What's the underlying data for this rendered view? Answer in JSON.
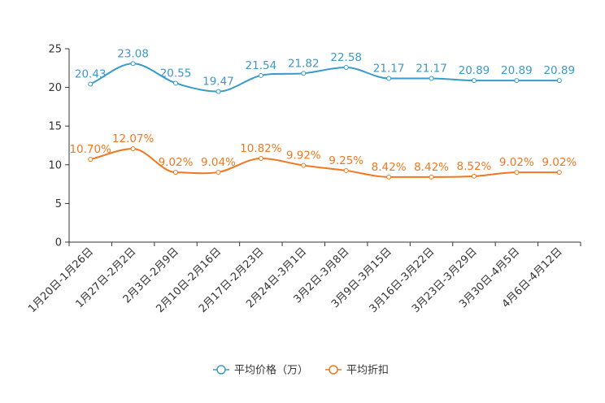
{
  "chart_data": {
    "type": "line",
    "title": "",
    "xlabel": "",
    "ylabel": "",
    "ylim": [
      0,
      25
    ],
    "yticks": [
      0,
      5,
      10,
      15,
      20,
      25
    ],
    "grid": false,
    "legend_position": "bottom-center",
    "categories": [
      "1月20日-1月26日",
      "1月27日-2月2日",
      "2月3日-2月9日",
      "2月10日-2月16日",
      "2月17日-2月23日",
      "2月24日-3月1日",
      "3月2日-3月8日",
      "3月9日-3月15日",
      "3月16日-3月22日",
      "3月23日-3月29日",
      "3月30日-4月5日",
      "4月6日-4月12日"
    ],
    "series": [
      {
        "name": "平均价格（万）",
        "color": "#3a9ac9",
        "values": [
          20.43,
          23.08,
          20.55,
          19.47,
          21.54,
          21.82,
          22.58,
          21.17,
          21.17,
          20.89,
          20.89,
          20.89
        ],
        "labels": [
          "20.43",
          "23.08",
          "20.55",
          "19.47",
          "21.54",
          "21.82",
          "22.58",
          "21.17",
          "21.17",
          "20.89",
          "20.89",
          "20.89"
        ]
      },
      {
        "name": "平均折扣",
        "color": "#f07820",
        "values": [
          10.7,
          12.07,
          9.02,
          9.04,
          10.82,
          9.92,
          9.25,
          8.42,
          8.42,
          8.52,
          9.02,
          9.02
        ],
        "labels": [
          "10.70%",
          "12.07%",
          "9.02%",
          "9.04%",
          "10.82%",
          "9.92%",
          "9.25%",
          "8.42%",
          "8.42%",
          "8.52%",
          "9.02%",
          "9.02%"
        ]
      }
    ]
  }
}
